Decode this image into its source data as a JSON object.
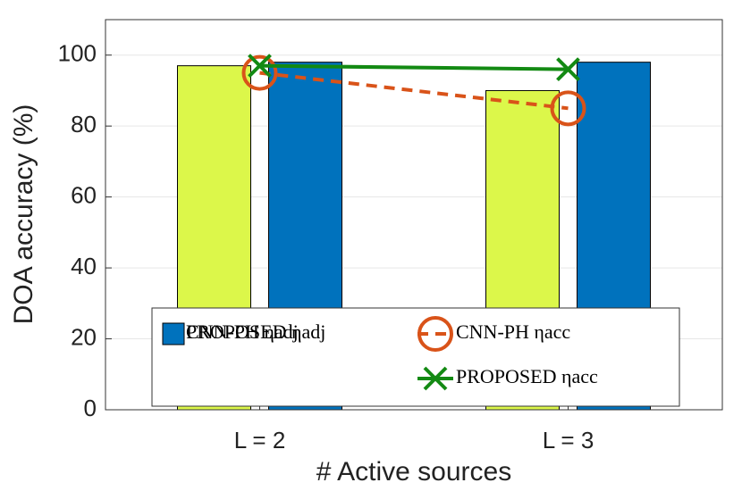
{
  "chart_data": {
    "type": "bar",
    "xlabel": "# Active sources",
    "ylabel": "DOA accuracy (%)",
    "categories": [
      "L = 2",
      "L = 3"
    ],
    "ylim": [
      0,
      110
    ],
    "yticks": [
      0,
      20,
      40,
      60,
      80,
      100
    ],
    "grid": true,
    "series": [
      {
        "name": "CNN-PH ηadj",
        "type": "bar",
        "color": "#dcf74a",
        "values": [
          97,
          90
        ]
      },
      {
        "name": "PROPOSED ηadj",
        "type": "bar",
        "color": "#0072bd",
        "values": [
          98,
          98
        ]
      },
      {
        "name": "CNN-PH ηacc",
        "type": "line",
        "color": "#d95319",
        "dashed": true,
        "marker": "circle",
        "values": [
          95,
          85
        ]
      },
      {
        "name": "PROPOSED ηacc",
        "type": "line",
        "color": "#138a13",
        "dashed": false,
        "marker": "x",
        "values": [
          97,
          96
        ]
      }
    ]
  }
}
